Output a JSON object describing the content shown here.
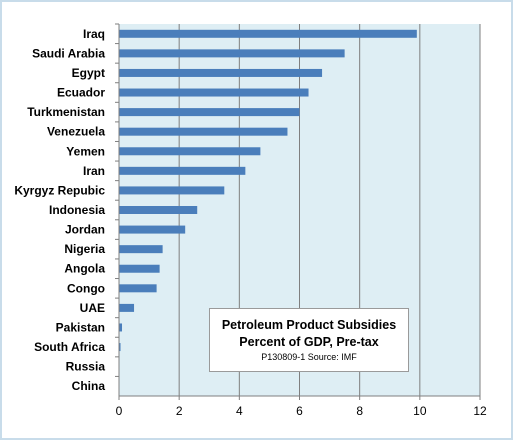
{
  "chart_data": {
    "type": "bar",
    "orientation": "horizontal",
    "categories": [
      "Iraq",
      "Saudi Arabia",
      "Egypt",
      "Ecuador",
      "Turkmenistan",
      "Venezuela",
      "Yemen",
      "Iran",
      "Kyrgyz Repubic",
      "Indonesia",
      "Jordan",
      "Nigeria",
      "Angola",
      "Congo",
      "UAE",
      "Pakistan",
      "South Africa",
      "Russia",
      "China"
    ],
    "values": [
      9.9,
      7.5,
      6.75,
      6.3,
      6.0,
      5.6,
      4.7,
      4.2,
      3.5,
      2.6,
      2.2,
      1.45,
      1.35,
      1.25,
      0.5,
      0.1,
      0.05,
      0.0,
      0.0
    ],
    "xlim": [
      0,
      12
    ],
    "xticks": [
      0,
      2,
      4,
      6,
      8,
      10,
      12
    ],
    "grid": true,
    "bar_color": "#4a7ebb",
    "plot_background": "#deeef4",
    "frame_border_color": "#c8dcea",
    "title": "Petroleum Product Subsidies",
    "subtitle": "Percent of GDP, Pre-tax",
    "source": "P130809-1 Source: IMF",
    "xlabel": "",
    "ylabel": ""
  }
}
